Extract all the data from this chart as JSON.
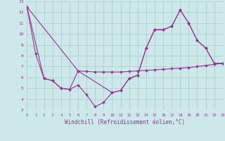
{
  "xlabel": "Windchill (Refroidissement éolien,°C)",
  "bg_color": "#cce8e8",
  "grid_color": "#aacccc",
  "line_color": "#993399",
  "xlabel_color": "#993399",
  "xmin": 0,
  "xmax": 23,
  "ymin": 3,
  "ymax": 13,
  "line1_x": [
    0,
    1,
    2,
    3,
    4,
    5,
    6,
    7,
    8,
    9,
    10,
    11,
    12,
    13,
    14,
    15,
    16,
    17,
    18,
    19,
    20,
    21,
    22,
    23
  ],
  "line1_y": [
    12.5,
    8.2,
    5.9,
    5.7,
    5.0,
    4.9,
    5.3,
    4.4,
    3.3,
    3.7,
    4.6,
    4.8,
    5.9,
    6.2,
    8.7,
    10.4,
    10.4,
    10.7,
    12.2,
    11.0,
    9.4,
    8.7,
    7.3,
    7.3
  ],
  "line2_x": [
    0,
    2,
    3,
    4,
    5,
    6,
    7,
    8,
    9,
    10,
    11,
    12,
    13,
    14,
    15,
    16,
    17,
    18,
    19,
    20,
    21,
    22,
    23
  ],
  "line2_y": [
    12.5,
    5.9,
    5.7,
    5.0,
    4.9,
    6.6,
    6.55,
    6.5,
    6.5,
    6.5,
    6.5,
    6.55,
    6.6,
    6.65,
    6.7,
    6.75,
    6.8,
    6.85,
    6.9,
    7.0,
    7.1,
    7.2,
    7.3
  ],
  "line3_x": [
    0,
    6,
    10,
    11,
    12,
    13,
    14,
    15,
    16,
    17,
    18,
    19,
    20,
    21,
    22,
    23
  ],
  "line3_y": [
    12.5,
    6.6,
    4.6,
    4.8,
    5.9,
    6.2,
    8.7,
    10.4,
    10.4,
    10.7,
    12.2,
    11.0,
    9.4,
    8.7,
    7.3,
    7.3
  ]
}
